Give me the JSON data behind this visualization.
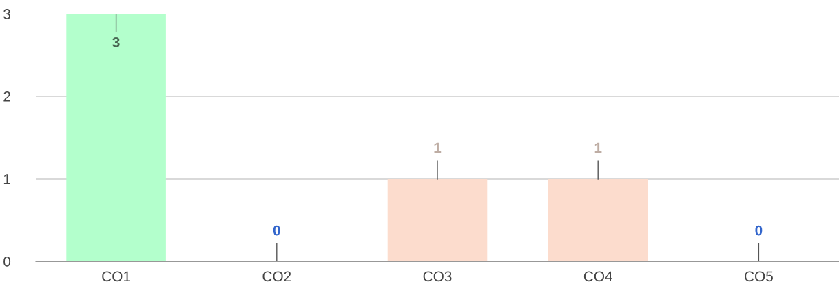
{
  "chart_data": {
    "type": "bar",
    "categories": [
      "CO1",
      "CO2",
      "CO3",
      "CO4",
      "CO5"
    ],
    "values": [
      3,
      0,
      1,
      1,
      0
    ],
    "colors": [
      "#b3ffcc",
      "#3366cc",
      "#fcdccd",
      "#fcdccd",
      "#3366cc"
    ],
    "ylim": [
      0,
      3
    ],
    "yticks": [
      0,
      1,
      2,
      3
    ],
    "grid": "y",
    "data_labels": true
  }
}
